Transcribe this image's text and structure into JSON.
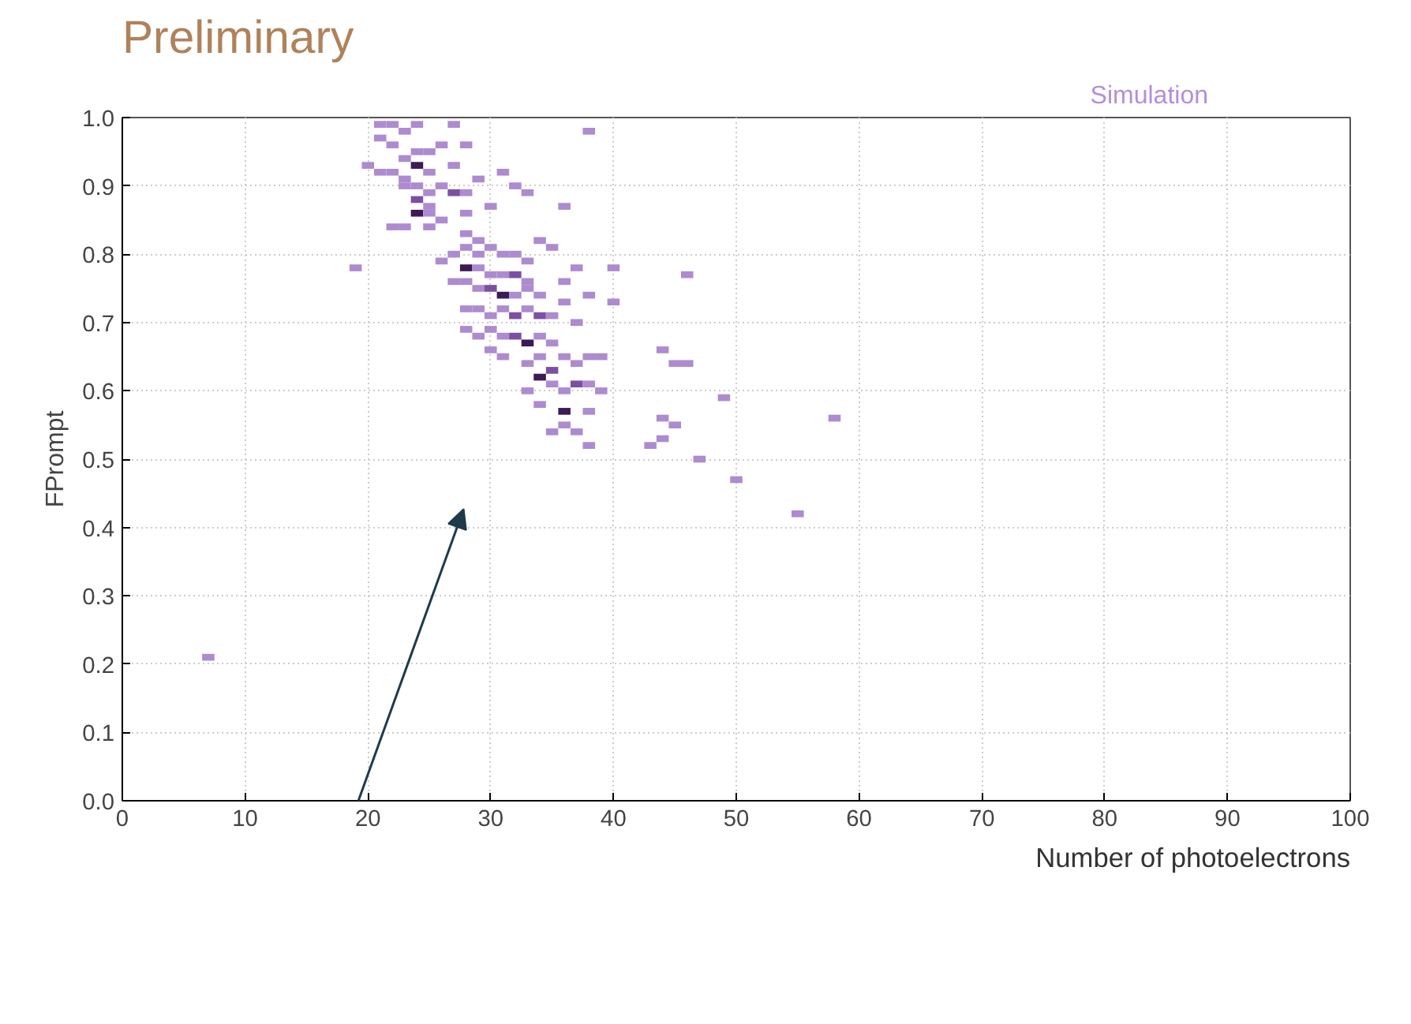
{
  "chart_data": {
    "type": "scatter",
    "title": "Preliminary",
    "xlabel": "Number of photoelectrons",
    "ylabel": "FPrompt",
    "annotations": [
      "Simulation"
    ],
    "marker": "square",
    "grid": true,
    "xlim": [
      0,
      100
    ],
    "ylim": [
      0,
      1
    ],
    "xticks": [
      0,
      10,
      20,
      30,
      40,
      50,
      60,
      70,
      80,
      90,
      100
    ],
    "yticks": [
      {
        "value": 0,
        "label": "0.0"
      },
      0.1,
      0.2,
      0.3,
      0.4,
      0.5,
      0.6,
      0.7,
      0.8,
      0.9,
      {
        "value": 1,
        "label": "1.0"
      }
    ],
    "series": [
      {
        "x": [
          21,
          22,
          23,
          24,
          27,
          38,
          21,
          22,
          25,
          26,
          28,
          23,
          24,
          20,
          21,
          22,
          23,
          24,
          25,
          27,
          29,
          31,
          23,
          24,
          25,
          26,
          27,
          28,
          32,
          33,
          24,
          25,
          28,
          36,
          30,
          24,
          25,
          26,
          22,
          23,
          25,
          28,
          29,
          28,
          27,
          29,
          30,
          31,
          32,
          34,
          35,
          26,
          28,
          29,
          33,
          37,
          40,
          19,
          30,
          31,
          32,
          33,
          36,
          46,
          27,
          28,
          29,
          30,
          31,
          32,
          33,
          34,
          36,
          38,
          40,
          28,
          29,
          30,
          31,
          32,
          33,
          34,
          35,
          37,
          28,
          29,
          30,
          31,
          32,
          33,
          34,
          35,
          30,
          31,
          33,
          34,
          35,
          36,
          37,
          38,
          39,
          44,
          45,
          46,
          34,
          35,
          36,
          37,
          38,
          33,
          39,
          49,
          34,
          36,
          38,
          44,
          45,
          58,
          35,
          37,
          44,
          43,
          38,
          36,
          47,
          50,
          55,
          7
        ],
        "values": [
          0.99,
          0.99,
          0.98,
          0.99,
          0.99,
          0.98,
          0.97,
          0.96,
          0.95,
          0.96,
          0.96,
          0.94,
          0.95,
          0.93,
          0.92,
          0.92,
          0.91,
          0.93,
          0.92,
          0.93,
          0.91,
          0.92,
          0.9,
          0.9,
          0.89,
          0.9,
          0.89,
          0.89,
          0.9,
          0.89,
          0.88,
          0.87,
          0.86,
          0.87,
          0.87,
          0.86,
          0.86,
          0.85,
          0.84,
          0.84,
          0.84,
          0.83,
          0.82,
          0.81,
          0.8,
          0.8,
          0.81,
          0.8,
          0.8,
          0.82,
          0.81,
          0.79,
          0.78,
          0.78,
          0.79,
          0.78,
          0.78,
          0.78,
          0.77,
          0.77,
          0.77,
          0.76,
          0.76,
          0.77,
          0.76,
          0.76,
          0.75,
          0.75,
          0.74,
          0.74,
          0.75,
          0.74,
          0.73,
          0.74,
          0.73,
          0.72,
          0.72,
          0.71,
          0.72,
          0.71,
          0.72,
          0.71,
          0.71,
          0.7,
          0.69,
          0.68,
          0.69,
          0.68,
          0.68,
          0.67,
          0.68,
          0.67,
          0.66,
          0.65,
          0.64,
          0.65,
          0.63,
          0.65,
          0.64,
          0.65,
          0.65,
          0.66,
          0.64,
          0.64,
          0.62,
          0.61,
          0.6,
          0.61,
          0.61,
          0.6,
          0.6,
          0.59,
          0.58,
          0.57,
          0.57,
          0.56,
          0.55,
          0.56,
          0.54,
          0.54,
          0.53,
          0.52,
          0.52,
          0.55,
          0.5,
          0.47,
          0.42,
          0.21
        ],
        "colors": [
          "#ad8bd0",
          "#ad8bd0",
          "#ad8bd0",
          "#ad8bd0",
          "#ad8bd0",
          "#ad8bd0",
          "#ad8bd0",
          "#ad8bd0",
          "#ad8bd0",
          "#ad8bd0",
          "#ad8bd0",
          "#ad8bd0",
          "#ad8bd0",
          "#ad8bd0",
          "#ad8bd0",
          "#ad8bd0",
          "#ad8bd0",
          "#3d1a56",
          "#ad8bd0",
          "#ad8bd0",
          "#ad8bd0",
          "#ad8bd0",
          "#ad8bd0",
          "#ad8bd0",
          "#ad8bd0",
          "#ad8bd0",
          "#7d4fa3",
          "#ad8bd0",
          "#ad8bd0",
          "#ad8bd0",
          "#7d4fa3",
          "#ad8bd0",
          "#ad8bd0",
          "#ad8bd0",
          "#ad8bd0",
          "#3d1a56",
          "#ad8bd0",
          "#ad8bd0",
          "#ad8bd0",
          "#ad8bd0",
          "#ad8bd0",
          "#ad8bd0",
          "#ad8bd0",
          "#ad8bd0",
          "#ad8bd0",
          "#ad8bd0",
          "#ad8bd0",
          "#ad8bd0",
          "#ad8bd0",
          "#ad8bd0",
          "#ad8bd0",
          "#ad8bd0",
          "#3d1a56",
          "#ad8bd0",
          "#ad8bd0",
          "#ad8bd0",
          "#ad8bd0",
          "#ad8bd0",
          "#ad8bd0",
          "#ad8bd0",
          "#7d4fa3",
          "#ad8bd0",
          "#ad8bd0",
          "#ad8bd0",
          "#ad8bd0",
          "#ad8bd0",
          "#ad8bd0",
          "#7d4fa3",
          "#3d1a56",
          "#ad8bd0",
          "#ad8bd0",
          "#ad8bd0",
          "#ad8bd0",
          "#ad8bd0",
          "#ad8bd0",
          "#ad8bd0",
          "#ad8bd0",
          "#ad8bd0",
          "#ad8bd0",
          "#7d4fa3",
          "#ad8bd0",
          "#7d4fa3",
          "#ad8bd0",
          "#ad8bd0",
          "#ad8bd0",
          "#ad8bd0",
          "#ad8bd0",
          "#ad8bd0",
          "#7d4fa3",
          "#3d1a56",
          "#ad8bd0",
          "#ad8bd0",
          "#ad8bd0",
          "#ad8bd0",
          "#ad8bd0",
          "#ad8bd0",
          "#7d4fa3",
          "#ad8bd0",
          "#ad8bd0",
          "#ad8bd0",
          "#ad8bd0",
          "#ad8bd0",
          "#ad8bd0",
          "#ad8bd0",
          "#3d1a56",
          "#ad8bd0",
          "#ad8bd0",
          "#7d4fa3",
          "#ad8bd0",
          "#ad8bd0",
          "#ad8bd0",
          "#ad8bd0",
          "#ad8bd0",
          "#3d1a56",
          "#ad8bd0",
          "#ad8bd0",
          "#ad8bd0",
          "#ad8bd0",
          "#ad8bd0",
          "#ad8bd0",
          "#ad8bd0",
          "#ad8bd0",
          "#ad8bd0",
          "#ad8bd0",
          "#ad8bd0",
          "#ad8bd0",
          "#ad8bd0",
          "#ad8bd0"
        ]
      }
    ]
  }
}
